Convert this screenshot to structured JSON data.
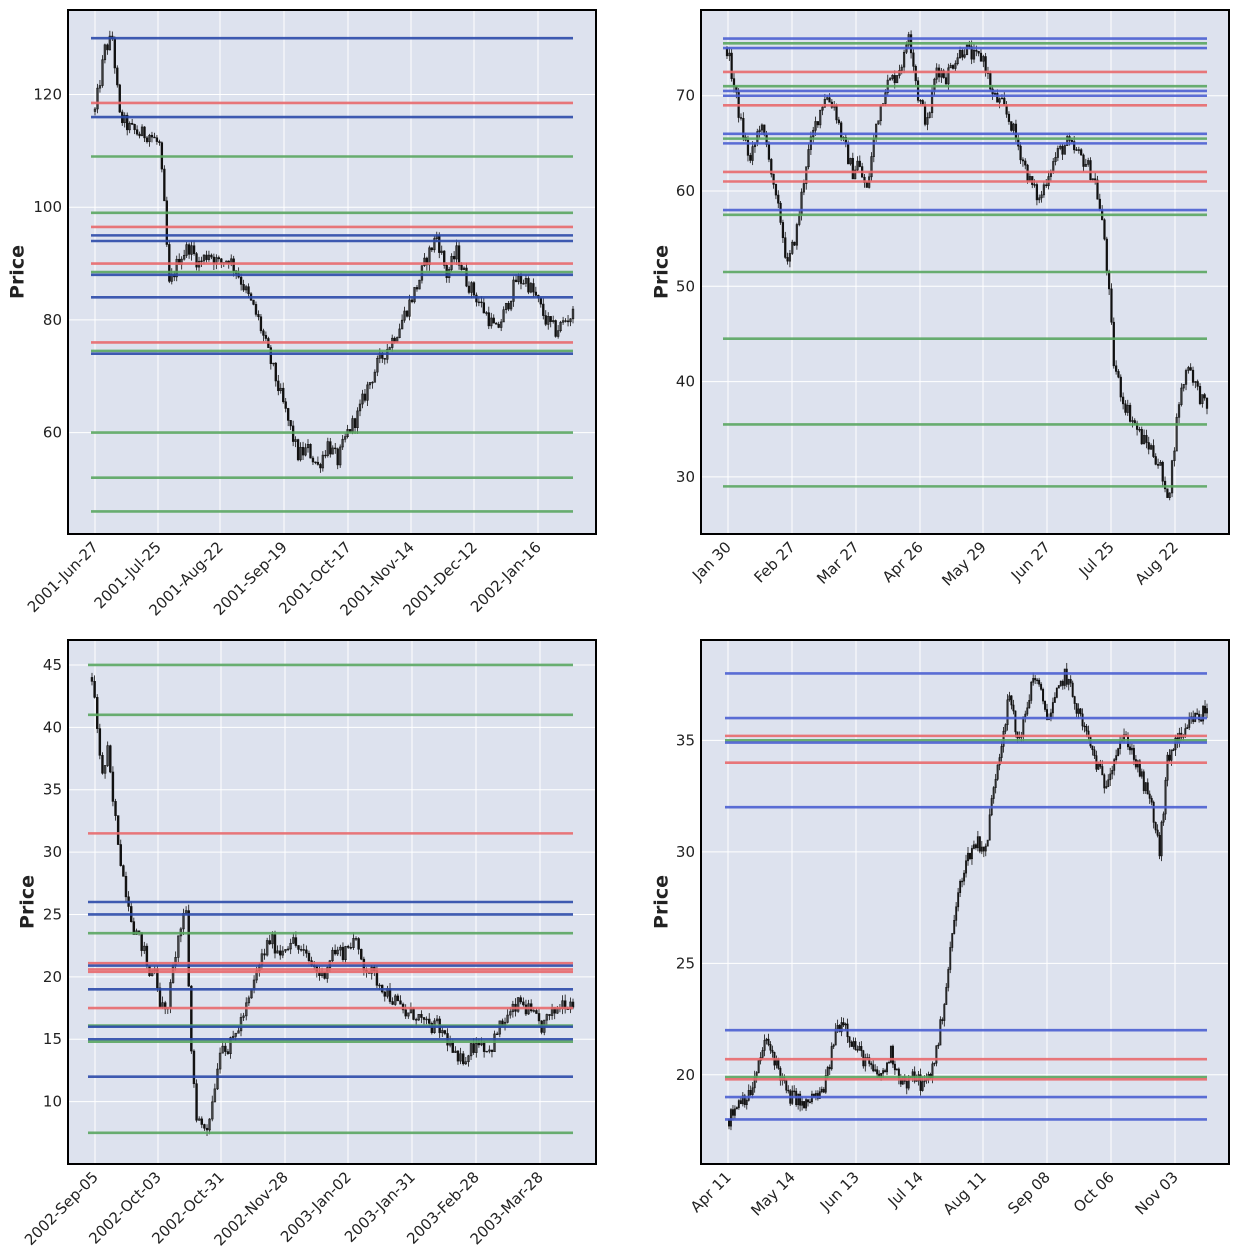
{
  "colors": {
    "plot_background": "#dde2ee",
    "grid": "#ffffff",
    "frame": "#000000",
    "candle": "#111111",
    "red_line": "#e8696b",
    "green_line": "#5aa660",
    "blue_line": "#4a5fd0",
    "blue_line_dark": "#2b4aa8"
  },
  "chart_data": [
    {
      "type": "candlestick",
      "ylabel": "Price",
      "ylim": [
        42,
        135
      ],
      "yticks": [
        60,
        80,
        100,
        120
      ],
      "x_tick_labels": [
        "2001-Jun-27",
        "2001-Jul-25",
        "2001-Aug-22",
        "2001-Sep-19",
        "2001-Oct-17",
        "2001-Nov-14",
        "2001-Dec-12",
        "2002-Jan-16"
      ],
      "close_path": [
        [
          0,
          117
        ],
        [
          4,
          128
        ],
        [
          7,
          130
        ],
        [
          10,
          116
        ],
        [
          14,
          114
        ],
        [
          18,
          113
        ],
        [
          22,
          113
        ],
        [
          26,
          111
        ],
        [
          28,
          100
        ],
        [
          30,
          86
        ],
        [
          34,
          91
        ],
        [
          38,
          93
        ],
        [
          42,
          90
        ],
        [
          46,
          92
        ],
        [
          50,
          90
        ],
        [
          54,
          91
        ],
        [
          58,
          88
        ],
        [
          62,
          84
        ],
        [
          66,
          80
        ],
        [
          70,
          74
        ],
        [
          74,
          68
        ],
        [
          78,
          62
        ],
        [
          82,
          56
        ],
        [
          86,
          57
        ],
        [
          90,
          54
        ],
        [
          94,
          58
        ],
        [
          98,
          55
        ],
        [
          102,
          60
        ],
        [
          106,
          63
        ],
        [
          110,
          68
        ],
        [
          114,
          72
        ],
        [
          118,
          75
        ],
        [
          122,
          78
        ],
        [
          126,
          82
        ],
        [
          130,
          86
        ],
        [
          134,
          91
        ],
        [
          138,
          95
        ],
        [
          142,
          88
        ],
        [
          146,
          92
        ],
        [
          150,
          87
        ],
        [
          154,
          84
        ],
        [
          158,
          81
        ],
        [
          162,
          78
        ],
        [
          166,
          82
        ],
        [
          170,
          87
        ],
        [
          174,
          87
        ],
        [
          178,
          84
        ],
        [
          182,
          80
        ],
        [
          186,
          78
        ],
        [
          190,
          80
        ],
        [
          193,
          81
        ]
      ],
      "lines": [
        {
          "color": "blue",
          "value": 130
        },
        {
          "color": "red",
          "value": 118.5
        },
        {
          "color": "blue",
          "value": 116
        },
        {
          "color": "green",
          "value": 109
        },
        {
          "color": "green",
          "value": 99
        },
        {
          "color": "red",
          "value": 96.5
        },
        {
          "color": "blue",
          "value": 95
        },
        {
          "color": "blue",
          "value": 94
        },
        {
          "color": "red",
          "value": 90
        },
        {
          "color": "green",
          "value": 88.5
        },
        {
          "color": "blue",
          "value": 88
        },
        {
          "color": "blue",
          "value": 84
        },
        {
          "color": "red",
          "value": 76
        },
        {
          "color": "green",
          "value": 74.5
        },
        {
          "color": "blue",
          "value": 74
        },
        {
          "color": "green",
          "value": 60
        },
        {
          "color": "green",
          "value": 52
        },
        {
          "color": "green",
          "value": 46
        }
      ]
    },
    {
      "type": "candlestick",
      "ylabel": "Price",
      "ylim": [
        24,
        79
      ],
      "yticks": [
        30,
        40,
        50,
        60,
        70
      ],
      "x_tick_labels": [
        "Jan 30",
        "Feb 27",
        "Mar 27",
        "Apr 26",
        "May 29",
        "Jun 27",
        "Jul 25",
        "Aug 22"
      ],
      "close_path": [
        [
          0,
          75
        ],
        [
          3,
          71
        ],
        [
          6,
          67
        ],
        [
          10,
          63
        ],
        [
          14,
          67
        ],
        [
          18,
          64
        ],
        [
          20,
          60
        ],
        [
          23,
          57
        ],
        [
          26,
          52
        ],
        [
          30,
          56
        ],
        [
          34,
          63
        ],
        [
          38,
          67
        ],
        [
          42,
          70
        ],
        [
          46,
          69
        ],
        [
          50,
          65
        ],
        [
          54,
          62
        ],
        [
          56,
          63
        ],
        [
          60,
          60
        ],
        [
          64,
          67
        ],
        [
          68,
          71
        ],
        [
          72,
          72
        ],
        [
          76,
          74
        ],
        [
          78,
          77
        ],
        [
          82,
          70
        ],
        [
          86,
          67
        ],
        [
          90,
          73
        ],
        [
          94,
          72
        ],
        [
          98,
          74
        ],
        [
          102,
          75
        ],
        [
          106,
          74
        ],
        [
          110,
          74
        ],
        [
          114,
          70
        ],
        [
          118,
          69
        ],
        [
          122,
          67
        ],
        [
          126,
          64
        ],
        [
          130,
          61
        ],
        [
          134,
          59
        ],
        [
          138,
          62
        ],
        [
          142,
          64
        ],
        [
          146,
          65
        ],
        [
          150,
          64
        ],
        [
          154,
          63
        ],
        [
          158,
          61
        ],
        [
          160,
          58
        ],
        [
          162,
          55
        ],
        [
          164,
          49
        ],
        [
          166,
          42
        ],
        [
          170,
          38
        ],
        [
          174,
          36
        ],
        [
          178,
          34
        ],
        [
          182,
          33
        ],
        [
          186,
          31
        ],
        [
          188,
          28
        ],
        [
          190,
          29
        ],
        [
          194,
          38
        ],
        [
          198,
          42
        ],
        [
          202,
          39
        ],
        [
          206,
          37
        ]
      ],
      "lines": [
        {
          "color": "blue",
          "value": 76
        },
        {
          "color": "green",
          "value": 75.5
        },
        {
          "color": "blue",
          "value": 75
        },
        {
          "color": "red",
          "value": 72.5
        },
        {
          "color": "green",
          "value": 71
        },
        {
          "color": "blue",
          "value": 70.5
        },
        {
          "color": "blue",
          "value": 70
        },
        {
          "color": "red",
          "value": 69
        },
        {
          "color": "blue",
          "value": 66
        },
        {
          "color": "green",
          "value": 65.5
        },
        {
          "color": "blue",
          "value": 65
        },
        {
          "color": "red",
          "value": 62
        },
        {
          "color": "red",
          "value": 61
        },
        {
          "color": "blue",
          "value": 58
        },
        {
          "color": "green",
          "value": 57.5
        },
        {
          "color": "green",
          "value": 51.5
        },
        {
          "color": "green",
          "value": 44.5
        },
        {
          "color": "green",
          "value": 35.5
        },
        {
          "color": "green",
          "value": 29
        }
      ]
    },
    {
      "type": "candlestick",
      "ylabel": "Price",
      "ylim": [
        5,
        47
      ],
      "yticks": [
        10,
        15,
        20,
        25,
        30,
        35,
        40,
        45
      ],
      "x_tick_labels": [
        "2002-Sep-05",
        "2002-Oct-03",
        "2002-Oct-31",
        "2002-Nov-28",
        "2003-Jan-02",
        "2003-Jan-31",
        "2003-Feb-28",
        "2003-Mar-28"
      ],
      "close_path": [
        [
          0,
          44
        ],
        [
          2,
          40
        ],
        [
          4,
          36
        ],
        [
          6,
          38
        ],
        [
          8,
          34
        ],
        [
          10,
          31
        ],
        [
          12,
          28
        ],
        [
          14,
          26
        ],
        [
          16,
          24
        ],
        [
          18,
          23
        ],
        [
          20,
          22
        ],
        [
          22,
          20
        ],
        [
          24,
          21
        ],
        [
          26,
          18
        ],
        [
          28,
          17
        ],
        [
          30,
          19
        ],
        [
          32,
          22
        ],
        [
          34,
          24
        ],
        [
          36,
          25
        ],
        [
          38,
          14
        ],
        [
          40,
          9
        ],
        [
          42,
          8
        ],
        [
          44,
          8
        ],
        [
          46,
          10
        ],
        [
          48,
          13
        ],
        [
          50,
          15
        ],
        [
          52,
          14
        ],
        [
          54,
          15
        ],
        [
          56,
          16
        ],
        [
          58,
          17
        ],
        [
          60,
          18
        ],
        [
          64,
          21
        ],
        [
          68,
          23
        ],
        [
          72,
          22
        ],
        [
          76,
          23
        ],
        [
          80,
          22
        ],
        [
          84,
          21
        ],
        [
          88,
          20
        ],
        [
          92,
          22
        ],
        [
          96,
          22
        ],
        [
          100,
          23
        ],
        [
          104,
          21
        ],
        [
          108,
          20
        ],
        [
          112,
          19
        ],
        [
          116,
          18
        ],
        [
          120,
          17
        ],
        [
          124,
          17
        ],
        [
          128,
          16
        ],
        [
          132,
          16
        ],
        [
          136,
          15
        ],
        [
          140,
          13
        ],
        [
          144,
          14
        ],
        [
          148,
          15
        ],
        [
          152,
          14
        ],
        [
          156,
          16
        ],
        [
          160,
          17
        ],
        [
          164,
          18
        ],
        [
          168,
          17
        ],
        [
          172,
          16
        ],
        [
          176,
          17
        ],
        [
          180,
          18
        ],
        [
          184,
          18
        ]
      ],
      "lines": [
        {
          "color": "green",
          "value": 45
        },
        {
          "color": "green",
          "value": 41
        },
        {
          "color": "red",
          "value": 31.5
        },
        {
          "color": "blue",
          "value": 26
        },
        {
          "color": "blue",
          "value": 25
        },
        {
          "color": "green",
          "value": 23.5
        },
        {
          "color": "red",
          "value": 21.1
        },
        {
          "color": "blue",
          "value": 20.9
        },
        {
          "color": "red",
          "value": 20.6
        },
        {
          "color": "red",
          "value": 20.4
        },
        {
          "color": "blue",
          "value": 19
        },
        {
          "color": "red",
          "value": 17.5
        },
        {
          "color": "green",
          "value": 16.1
        },
        {
          "color": "blue",
          "value": 16
        },
        {
          "color": "blue",
          "value": 15
        },
        {
          "color": "green",
          "value": 14.8
        },
        {
          "color": "blue",
          "value": 12
        },
        {
          "color": "green",
          "value": 7.5
        }
      ]
    },
    {
      "type": "candlestick",
      "ylabel": "Price",
      "ylim": [
        16,
        39.5
      ],
      "yticks": [
        20,
        25,
        30,
        35
      ],
      "x_tick_labels": [
        "Apr 11",
        "May 14",
        "Jun 13",
        "Jul 14",
        "Aug 11",
        "Sep 08",
        "Oct 06",
        "Nov 03"
      ],
      "close_path": [
        [
          0,
          18
        ],
        [
          3,
          18.5
        ],
        [
          6,
          19
        ],
        [
          10,
          19
        ],
        [
          14,
          20
        ],
        [
          18,
          21.5
        ],
        [
          22,
          21
        ],
        [
          26,
          20
        ],
        [
          30,
          19
        ],
        [
          34,
          19
        ],
        [
          38,
          18.5
        ],
        [
          42,
          19
        ],
        [
          46,
          19
        ],
        [
          50,
          20
        ],
        [
          54,
          22
        ],
        [
          58,
          22.5
        ],
        [
          62,
          21.5
        ],
        [
          66,
          21
        ],
        [
          70,
          20.5
        ],
        [
          74,
          20
        ],
        [
          78,
          20
        ],
        [
          82,
          21
        ],
        [
          86,
          20
        ],
        [
          90,
          19.5
        ],
        [
          94,
          20
        ],
        [
          98,
          19.5
        ],
        [
          102,
          20
        ],
        [
          106,
          21.5
        ],
        [
          110,
          24
        ],
        [
          114,
          27
        ],
        [
          118,
          29
        ],
        [
          122,
          30
        ],
        [
          126,
          30.5
        ],
        [
          130,
          30
        ],
        [
          134,
          33
        ],
        [
          138,
          35
        ],
        [
          142,
          37
        ],
        [
          146,
          35
        ],
        [
          150,
          36
        ],
        [
          154,
          38
        ],
        [
          158,
          37
        ],
        [
          162,
          36
        ],
        [
          166,
          37
        ],
        [
          170,
          38
        ],
        [
          174,
          37
        ],
        [
          178,
          36
        ],
        [
          182,
          35
        ],
        [
          186,
          34
        ],
        [
          190,
          33
        ],
        [
          194,
          34
        ],
        [
          198,
          35
        ],
        [
          202,
          35
        ],
        [
          206,
          34
        ],
        [
          210,
          33
        ],
        [
          214,
          32
        ],
        [
          218,
          30
        ],
        [
          222,
          34
        ],
        [
          226,
          35
        ],
        [
          230,
          35
        ],
        [
          234,
          36
        ],
        [
          238,
          36
        ],
        [
          242,
          36.5
        ]
      ],
      "lines": [
        {
          "color": "blue",
          "value": 38
        },
        {
          "color": "blue",
          "value": 36
        },
        {
          "color": "red",
          "value": 35.2
        },
        {
          "color": "green",
          "value": 35
        },
        {
          "color": "blue",
          "value": 34.9
        },
        {
          "color": "red",
          "value": 34
        },
        {
          "color": "blue",
          "value": 32
        },
        {
          "color": "blue",
          "value": 22
        },
        {
          "color": "red",
          "value": 20.7
        },
        {
          "color": "green",
          "value": 19.9
        },
        {
          "color": "red",
          "value": 19.8
        },
        {
          "color": "blue",
          "value": 19
        },
        {
          "color": "blue",
          "value": 18
        }
      ]
    }
  ]
}
